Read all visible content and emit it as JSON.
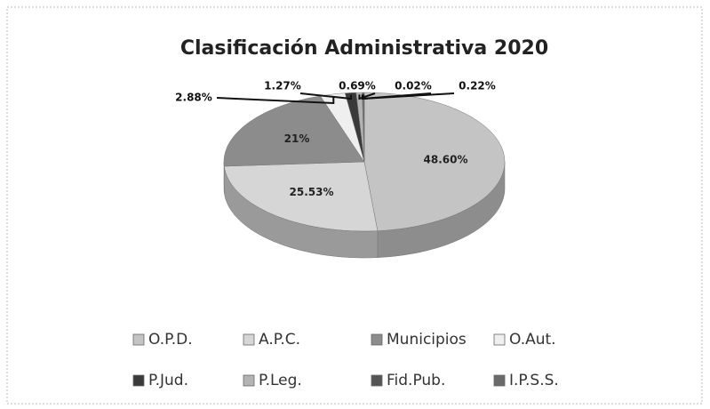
{
  "chart_data": {
    "type": "pie3d",
    "title": "Clasificación Administrativa 2020",
    "categories": [
      "O.P.D.",
      "A.P.C.",
      "Municipios",
      "O.Aut.",
      "P.Jud.",
      "P.Leg.",
      "Fid.Pub.",
      "I.P.S.S."
    ],
    "values": [
      48.6,
      25.53,
      21,
      2.88,
      1.27,
      0.69,
      0.02,
      0.22
    ],
    "value_labels": [
      "48.60%",
      "25.53%",
      "21%",
      "2.88%",
      "1.27%",
      "0.69%",
      "0.02%",
      "0.22%"
    ],
    "colors": [
      "#c4c4c4",
      "#d6d6d6",
      "#8c8c8c",
      "#efefef",
      "#3a3a3a",
      "#b4b4b4",
      "#555555",
      "#6a6a6a"
    ],
    "legend": "bottom"
  }
}
